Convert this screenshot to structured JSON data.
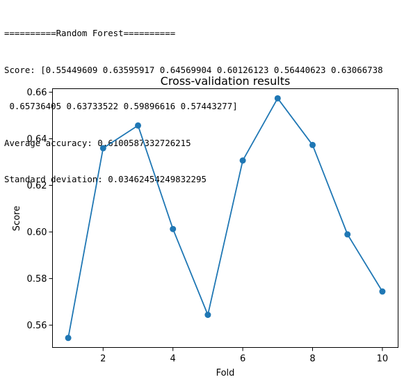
{
  "console": {
    "lines": [
      "==========Random Forest==========",
      "Score: [0.55449609 0.63595917 0.64569904 0.60126123 0.56440623 0.63066738",
      " 0.65736405 0.63733522 0.59896616 0.57443277]",
      "Average accuracy: 0.6100587332726215",
      "Standard deviation: 0.03462454249832295"
    ]
  },
  "chart_data": {
    "type": "line",
    "title": "Cross-validation results",
    "xlabel": "Fold",
    "ylabel": "Score",
    "x": [
      1,
      2,
      3,
      4,
      5,
      6,
      7,
      8,
      9,
      10
    ],
    "series": [
      {
        "values": [
          0.55449609,
          0.63595917,
          0.64569904,
          0.60126123,
          0.56440623,
          0.63066738,
          0.65736405,
          0.63733522,
          0.59896616,
          0.57443277
        ],
        "color": "#1f77b4",
        "marker": "circle"
      }
    ],
    "xticks": [
      2,
      4,
      6,
      8,
      10
    ],
    "xtick_labels": [
      "2",
      "4",
      "6",
      "8",
      "10"
    ],
    "yticks": [
      0.56,
      0.58,
      0.6,
      0.62,
      0.64,
      0.66
    ],
    "ytick_labels": [
      "0.56",
      "0.58",
      "0.60",
      "0.62",
      "0.64",
      "0.66"
    ],
    "xlim": [
      0.55,
      10.45
    ],
    "ylim": [
      0.5504,
      0.6615
    ],
    "grid": false
  }
}
